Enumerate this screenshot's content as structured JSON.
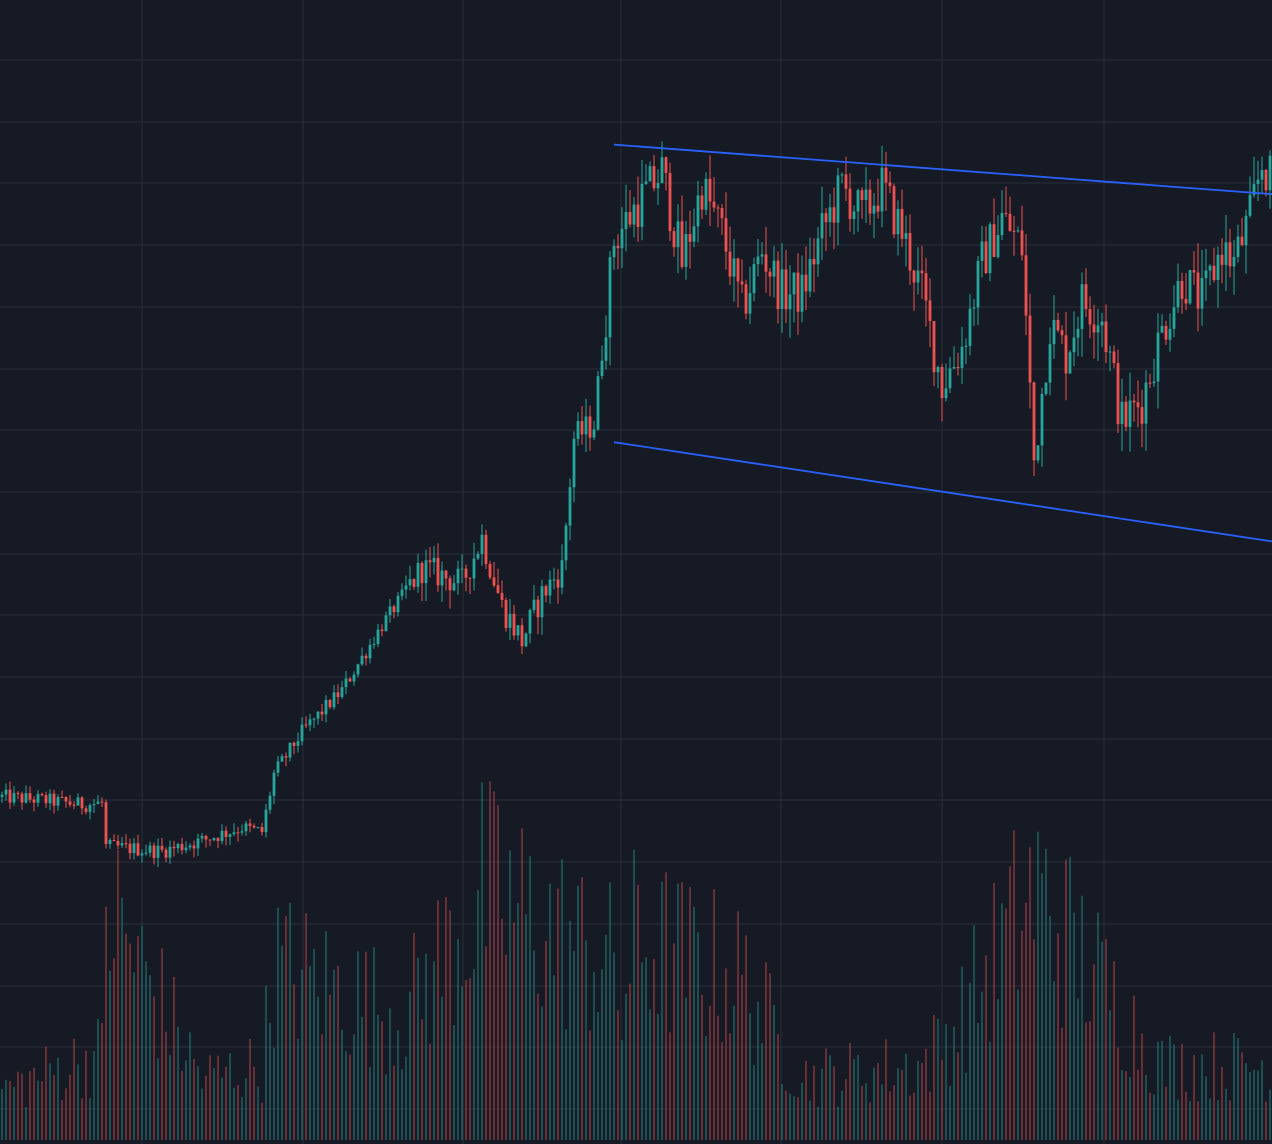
{
  "colors": {
    "background": "#161a25",
    "grid": "#2a2e39",
    "up": "#26a69a",
    "down": "#ef5350",
    "trendline": "#2962ff",
    "volume_up": "#26a69a",
    "volume_down": "#ef5350"
  },
  "chart_data": {
    "type": "candlestick",
    "title": "",
    "xlabel": "",
    "ylabel": "",
    "grid": true,
    "legend": "none",
    "axes_visible": false,
    "bar_count": 318,
    "price_range": [
      0,
      100
    ],
    "volume_range": [
      0,
      100
    ],
    "price_path_close": [
      [
        0,
        8.0
      ],
      [
        10,
        7.6
      ],
      [
        20,
        7.0
      ],
      [
        25,
        7.2
      ],
      [
        26,
        1.5
      ],
      [
        40,
        0.9
      ],
      [
        50,
        2.3
      ],
      [
        60,
        4.0
      ],
      [
        65,
        3.4
      ],
      [
        68,
        11.0
      ],
      [
        75,
        16.5
      ],
      [
        85,
        22.0
      ],
      [
        95,
        30.5
      ],
      [
        105,
        38.0
      ],
      [
        115,
        36.0
      ],
      [
        120,
        42.0
      ],
      [
        125,
        33.0
      ],
      [
        130,
        28.5
      ],
      [
        135,
        34.5
      ],
      [
        140,
        38.0
      ],
      [
        143,
        55.0
      ],
      [
        148,
        57.0
      ],
      [
        153,
        81.0
      ],
      [
        158,
        85.0
      ],
      [
        165,
        90.0
      ],
      [
        170,
        78.0
      ],
      [
        175,
        88.0
      ],
      [
        180,
        82.0
      ],
      [
        185,
        72.0
      ],
      [
        190,
        79.5
      ],
      [
        195,
        74.0
      ],
      [
        200,
        74.0
      ],
      [
        205,
        82.0
      ],
      [
        210,
        88.0
      ],
      [
        215,
        84.0
      ],
      [
        220,
        88.0
      ],
      [
        225,
        82.0
      ],
      [
        230,
        74.0
      ],
      [
        235,
        62.0
      ],
      [
        240,
        67.0
      ],
      [
        245,
        78.0
      ],
      [
        250,
        84.0
      ],
      [
        255,
        80.0
      ],
      [
        258,
        52.0
      ],
      [
        262,
        70.0
      ],
      [
        266,
        66.0
      ],
      [
        270,
        73.0
      ],
      [
        275,
        71.0
      ],
      [
        280,
        57.0
      ],
      [
        285,
        60.0
      ],
      [
        290,
        69.0
      ],
      [
        295,
        76.0
      ],
      [
        300,
        73.0
      ],
      [
        305,
        80.0
      ],
      [
        308,
        78.0
      ],
      [
        312,
        84.0
      ],
      [
        315,
        91.0
      ],
      [
        318,
        88.0
      ]
    ],
    "volume_profile": [
      [
        0,
        20
      ],
      [
        25,
        35
      ],
      [
        26,
        95
      ],
      [
        50,
        25
      ],
      [
        65,
        30
      ],
      [
        68,
        70
      ],
      [
        100,
        50
      ],
      [
        117,
        90
      ],
      [
        118,
        80
      ],
      [
        120,
        100
      ],
      [
        153,
        70
      ],
      [
        155,
        50
      ],
      [
        158,
        80
      ],
      [
        185,
        65
      ],
      [
        200,
        25
      ],
      [
        230,
        30
      ],
      [
        238,
        45
      ],
      [
        258,
        100
      ],
      [
        290,
        30
      ],
      [
        318,
        30
      ]
    ],
    "trendlines": [
      {
        "from": [
          153,
          93.5
        ],
        "to": [
          318,
          87.0
        ]
      },
      {
        "from": [
          153,
          54.5
        ],
        "to": [
          318,
          41.5
        ]
      }
    ]
  }
}
